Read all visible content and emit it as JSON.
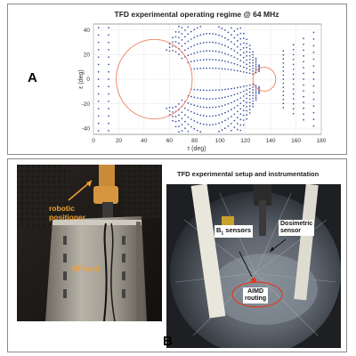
{
  "panel_a": {
    "letter": "A",
    "chart_data": {
      "type": "scatter",
      "title": "TFD experimental operating regime @ 64 MHz",
      "xlabel": "τ (deg)",
      "ylabel": "ε (deg)",
      "xlim": [
        0,
        180
      ],
      "ylim": [
        -45,
        45
      ],
      "xticks": [
        0,
        20,
        40,
        60,
        80,
        100,
        120,
        140,
        160,
        180
      ],
      "yticks": [
        -40,
        -20,
        0,
        20,
        40
      ],
      "grid": true,
      "point_color": "#3a4fa0",
      "circle_color": "#f08060",
      "circles": [
        {
          "center": [
            48,
            0
          ],
          "radius": 30
        },
        {
          "center": [
            135,
            0
          ],
          "radius": 9
        }
      ]
    }
  },
  "panel_b": {
    "letter": "B",
    "title": "TFD experimental setup and instrumentation",
    "left_photo": {
      "labels": {
        "robot": "robotic positioner",
        "coil": "RF-coil"
      },
      "label_color": "#f0a030"
    },
    "right_photo": {
      "labels": {
        "b1_main": "B",
        "b1_sub": "1",
        "b1_tail": " sensors",
        "dosimetric": "Dosimetric\nsensor",
        "aimd": "AIMD\nrouting"
      },
      "routing_color": "#e03a1e"
    }
  }
}
